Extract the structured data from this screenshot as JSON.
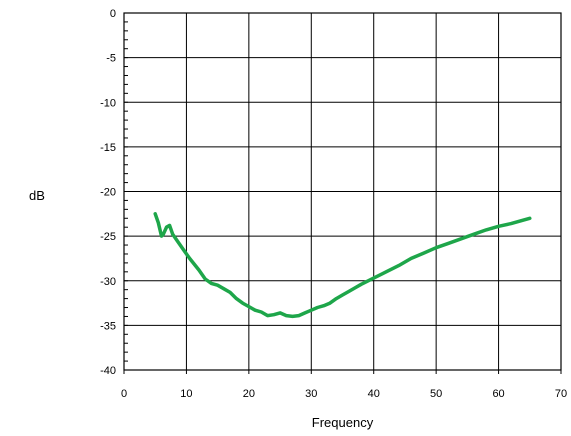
{
  "chart_data": {
    "type": "line",
    "title": "",
    "xlabel": "Frequency",
    "ylabel": "dB",
    "xlim": [
      0,
      70
    ],
    "ylim": [
      -40,
      0
    ],
    "xticks": [
      0,
      10,
      20,
      30,
      40,
      50,
      60,
      70
    ],
    "yticks": [
      0,
      -5,
      -10,
      -15,
      -20,
      -25,
      -30,
      -35,
      -40
    ],
    "grid": true,
    "legend": "none",
    "series": [
      {
        "color": "#1ea64a",
        "x": [
          5,
          5.5,
          6,
          6.3,
          6.8,
          7.3,
          7.8,
          8.5,
          9.5,
          10.5,
          12,
          13,
          14,
          15,
          16,
          17,
          18,
          19,
          20,
          21,
          22,
          23,
          24,
          25,
          26,
          27,
          28,
          29,
          30,
          31,
          32,
          33,
          34,
          35,
          36,
          37,
          38,
          40,
          42,
          44,
          46,
          48,
          50,
          52,
          54,
          56,
          58,
          60,
          62,
          64,
          65
        ],
        "y": [
          -22.5,
          -23.5,
          -25,
          -24.8,
          -24,
          -23.8,
          -24.8,
          -25.5,
          -26.5,
          -27.5,
          -28.8,
          -29.8,
          -30.3,
          -30.5,
          -30.9,
          -31.3,
          -32.0,
          -32.5,
          -32.9,
          -33.3,
          -33.5,
          -33.9,
          -33.8,
          -33.6,
          -33.9,
          -34.0,
          -33.9,
          -33.6,
          -33.3,
          -33.0,
          -32.8,
          -32.5,
          -32.0,
          -31.6,
          -31.2,
          -30.8,
          -30.4,
          -29.7,
          -29.0,
          -28.3,
          -27.5,
          -26.9,
          -26.3,
          -25.8,
          -25.3,
          -24.8,
          -24.3,
          -23.9,
          -23.6,
          -23.2,
          -23.0
        ]
      }
    ]
  }
}
